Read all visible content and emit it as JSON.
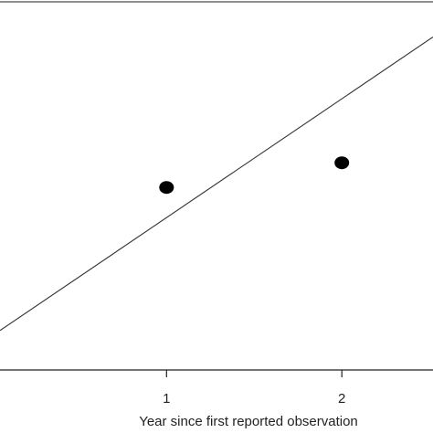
{
  "chart_data": {
    "type": "scatter",
    "xlabel": "Year since first reported observation",
    "x_ticks": [
      {
        "value": 1,
        "label": "1"
      },
      {
        "value": 2,
        "label": "2"
      }
    ],
    "xlim": [
      0.05,
      2.52
    ],
    "points": [
      {
        "x": 1,
        "y": 0.74
      },
      {
        "x": 2,
        "y": 0.84
      }
    ],
    "fit_line": {
      "x": [
        0.05,
        2.52
      ],
      "y": [
        0.16,
        1.35
      ]
    },
    "ylim": [
      0.0,
      1.5
    ],
    "colors": {
      "points": "#000000",
      "line": "#333333",
      "axis": "#222222"
    }
  }
}
